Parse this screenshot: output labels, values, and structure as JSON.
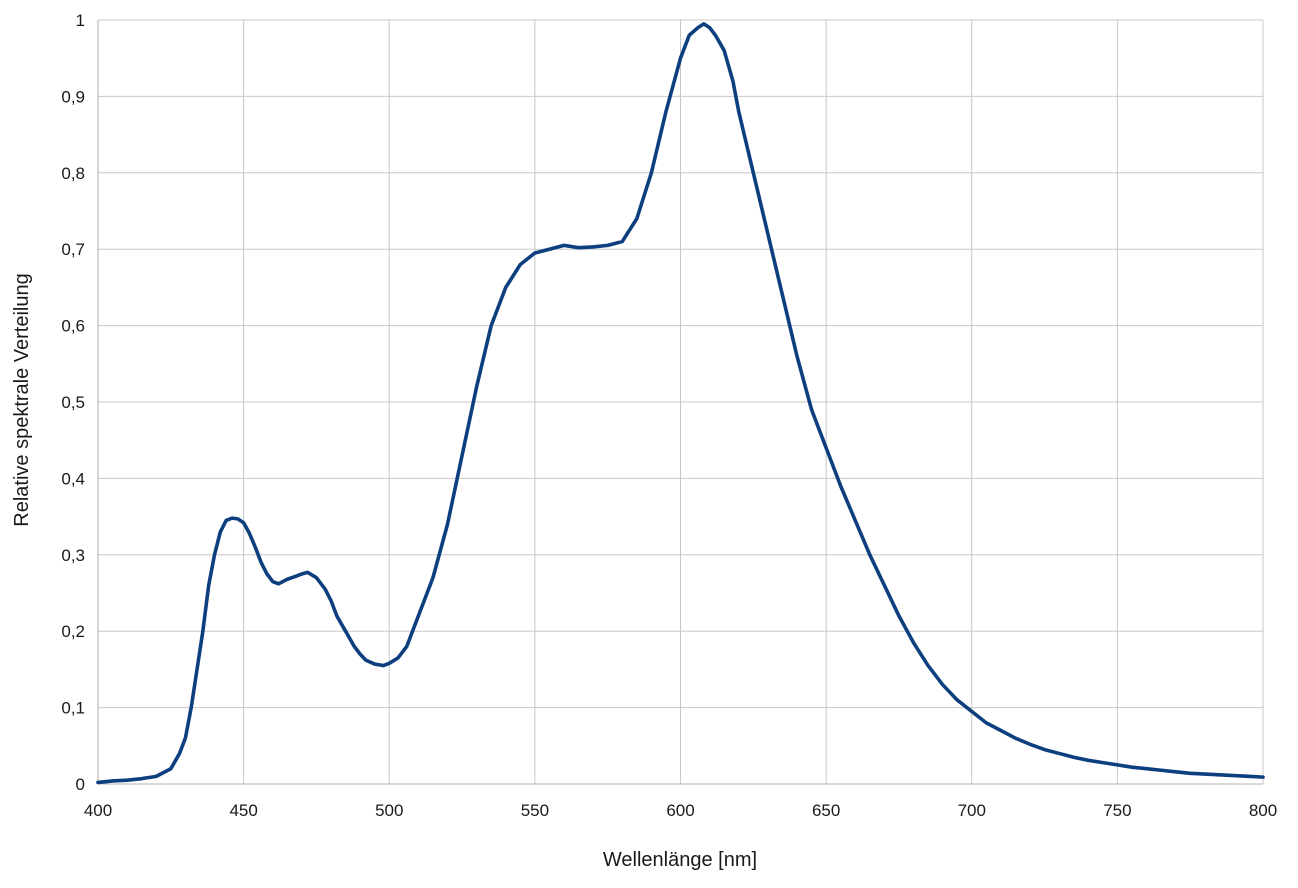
{
  "chart_data": {
    "type": "line",
    "title": "",
    "xlabel": "Wellenlänge [nm]",
    "ylabel": "Relative spektrale Verteilung",
    "xlim": [
      400,
      800
    ],
    "ylim": [
      0,
      1
    ],
    "x_ticks": [
      400,
      450,
      500,
      550,
      600,
      650,
      700,
      750,
      800
    ],
    "y_ticks": [
      0,
      0.1,
      0.2,
      0.3,
      0.4,
      0.5,
      0.6,
      0.7,
      0.8,
      0.9,
      1
    ],
    "x_tick_labels": [
      "400",
      "450",
      "500",
      "550",
      "600",
      "650",
      "700",
      "750",
      "800"
    ],
    "y_tick_labels": [
      "0",
      "0,1",
      "0,2",
      "0,3",
      "0,4",
      "0,5",
      "0,6",
      "0,7",
      "0,8",
      "0,9",
      "1"
    ],
    "grid": true,
    "legend": "none",
    "line_color": "#0d3f7f",
    "series": [
      {
        "x": [
          400,
          405,
          410,
          415,
          420,
          425,
          428,
          430,
          432,
          434,
          436,
          438,
          440,
          442,
          444,
          446,
          448,
          450,
          452,
          454,
          456,
          458,
          460,
          462,
          465,
          468,
          470,
          472,
          475,
          478,
          480,
          482,
          485,
          488,
          490,
          492,
          495,
          498,
          500,
          503,
          506,
          510,
          515,
          520,
          525,
          530,
          535,
          540,
          545,
          550,
          555,
          560,
          565,
          570,
          575,
          580,
          585,
          590,
          595,
          600,
          603,
          606,
          608,
          610,
          612,
          615,
          618,
          620,
          625,
          630,
          635,
          640,
          645,
          650,
          655,
          660,
          665,
          670,
          675,
          680,
          685,
          690,
          695,
          700,
          705,
          710,
          715,
          720,
          725,
          730,
          735,
          740,
          745,
          750,
          755,
          760,
          765,
          770,
          775,
          780,
          785,
          790,
          795,
          800
        ],
        "y": [
          0.002,
          0.004,
          0.005,
          0.007,
          0.01,
          0.02,
          0.04,
          0.06,
          0.1,
          0.15,
          0.2,
          0.26,
          0.3,
          0.33,
          0.345,
          0.348,
          0.347,
          0.342,
          0.328,
          0.31,
          0.29,
          0.275,
          0.265,
          0.262,
          0.268,
          0.272,
          0.275,
          0.277,
          0.27,
          0.255,
          0.24,
          0.22,
          0.2,
          0.18,
          0.17,
          0.162,
          0.157,
          0.155,
          0.158,
          0.165,
          0.18,
          0.22,
          0.27,
          0.34,
          0.43,
          0.52,
          0.6,
          0.65,
          0.68,
          0.695,
          0.7,
          0.705,
          0.702,
          0.703,
          0.705,
          0.71,
          0.74,
          0.8,
          0.88,
          0.95,
          0.98,
          0.99,
          0.995,
          0.99,
          0.98,
          0.96,
          0.92,
          0.88,
          0.8,
          0.72,
          0.64,
          0.56,
          0.49,
          0.44,
          0.39,
          0.345,
          0.3,
          0.26,
          0.22,
          0.185,
          0.155,
          0.13,
          0.11,
          0.095,
          0.08,
          0.07,
          0.06,
          0.052,
          0.045,
          0.04,
          0.035,
          0.031,
          0.028,
          0.025,
          0.022,
          0.02,
          0.018,
          0.016,
          0.014,
          0.013,
          0.012,
          0.011,
          0.01,
          0.009
        ]
      }
    ]
  }
}
